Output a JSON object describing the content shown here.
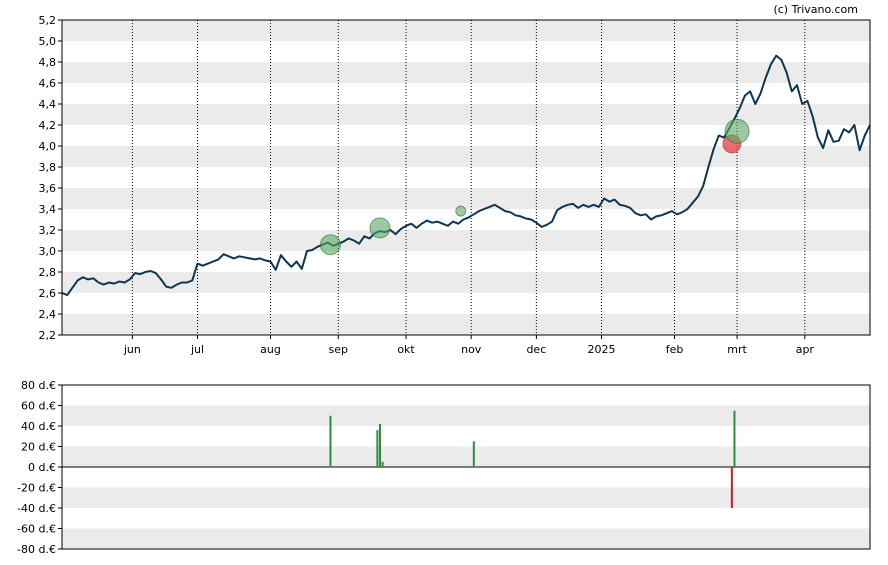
{
  "copyright": "(c) Trivano.com",
  "colors": {
    "price_line": "#0d3651",
    "band": "#ebebeb",
    "buy": "#2e8b3a",
    "sell": "#d2142b",
    "buy_marker": "#5aa864",
    "sell_marker": "#e84a4a"
  },
  "chart_data": [
    {
      "type": "line",
      "name": "price",
      "xlabel": "",
      "ylabel": "",
      "x_ticks": [
        "jun",
        "jul",
        "aug",
        "sep",
        "okt",
        "nov",
        "dec",
        "2025",
        "feb",
        "mrt",
        "apr"
      ],
      "y_ticks": [
        "2,2",
        "2,4",
        "2,6",
        "2,8",
        "3,0",
        "3,2",
        "3,4",
        "3,6",
        "3,8",
        "4,0",
        "4,2",
        "4,4",
        "4,6",
        "4,8",
        "5,0",
        "5,2"
      ],
      "ylim": [
        2.2,
        5.2
      ],
      "grid": true,
      "x_range": [
        0,
        310
      ],
      "x_tick_positions": [
        27,
        52,
        80,
        106,
        132,
        157,
        182,
        207,
        235,
        259,
        285
      ],
      "series_values": [
        [
          0,
          2.6
        ],
        [
          2,
          2.58
        ],
        [
          4,
          2.65
        ],
        [
          6,
          2.72
        ],
        [
          8,
          2.75
        ],
        [
          10,
          2.73
        ],
        [
          12,
          2.74
        ],
        [
          14,
          2.7
        ],
        [
          16,
          2.68
        ],
        [
          18,
          2.7
        ],
        [
          20,
          2.69
        ],
        [
          22,
          2.71
        ],
        [
          24,
          2.7
        ],
        [
          26,
          2.73
        ],
        [
          28,
          2.79
        ],
        [
          30,
          2.78
        ],
        [
          32,
          2.8
        ],
        [
          34,
          2.81
        ],
        [
          36,
          2.79
        ],
        [
          38,
          2.73
        ],
        [
          40,
          2.66
        ],
        [
          42,
          2.65
        ],
        [
          44,
          2.68
        ],
        [
          46,
          2.7
        ],
        [
          48,
          2.7
        ],
        [
          50,
          2.72
        ],
        [
          52,
          2.88
        ],
        [
          54,
          2.86
        ],
        [
          56,
          2.88
        ],
        [
          58,
          2.9
        ],
        [
          60,
          2.92
        ],
        [
          62,
          2.97
        ],
        [
          64,
          2.95
        ],
        [
          66,
          2.93
        ],
        [
          68,
          2.95
        ],
        [
          70,
          2.94
        ],
        [
          72,
          2.93
        ],
        [
          74,
          2.92
        ],
        [
          76,
          2.93
        ],
        [
          78,
          2.91
        ],
        [
          80,
          2.9
        ],
        [
          82,
          2.82
        ],
        [
          84,
          2.96
        ],
        [
          86,
          2.9
        ],
        [
          88,
          2.85
        ],
        [
          90,
          2.9
        ],
        [
          92,
          2.83
        ],
        [
          94,
          3.0
        ],
        [
          96,
          3.01
        ],
        [
          98,
          3.04
        ],
        [
          100,
          3.06
        ],
        [
          102,
          3.08
        ],
        [
          104,
          3.05
        ],
        [
          106,
          3.07
        ],
        [
          108,
          3.09
        ],
        [
          110,
          3.12
        ],
        [
          112,
          3.1
        ],
        [
          114,
          3.07
        ],
        [
          116,
          3.14
        ],
        [
          118,
          3.12
        ],
        [
          120,
          3.17
        ],
        [
          122,
          3.19
        ],
        [
          124,
          3.18
        ],
        [
          126,
          3.2
        ],
        [
          128,
          3.16
        ],
        [
          130,
          3.21
        ],
        [
          132,
          3.24
        ],
        [
          134,
          3.26
        ],
        [
          136,
          3.22
        ],
        [
          138,
          3.26
        ],
        [
          140,
          3.29
        ],
        [
          142,
          3.27
        ],
        [
          144,
          3.28
        ],
        [
          146,
          3.26
        ],
        [
          148,
          3.24
        ],
        [
          150,
          3.28
        ],
        [
          152,
          3.26
        ],
        [
          154,
          3.3
        ],
        [
          156,
          3.32
        ],
        [
          158,
          3.35
        ],
        [
          160,
          3.38
        ],
        [
          162,
          3.4
        ],
        [
          164,
          3.42
        ],
        [
          166,
          3.44
        ],
        [
          168,
          3.41
        ],
        [
          170,
          3.38
        ],
        [
          172,
          3.37
        ],
        [
          174,
          3.34
        ],
        [
          176,
          3.33
        ],
        [
          178,
          3.31
        ],
        [
          180,
          3.3
        ],
        [
          182,
          3.27
        ],
        [
          184,
          3.23
        ],
        [
          186,
          3.25
        ],
        [
          188,
          3.28
        ],
        [
          190,
          3.39
        ],
        [
          192,
          3.42
        ],
        [
          194,
          3.44
        ],
        [
          196,
          3.45
        ],
        [
          198,
          3.41
        ],
        [
          200,
          3.44
        ],
        [
          202,
          3.42
        ],
        [
          204,
          3.44
        ],
        [
          206,
          3.42
        ],
        [
          208,
          3.5
        ],
        [
          210,
          3.47
        ],
        [
          212,
          3.49
        ],
        [
          214,
          3.44
        ],
        [
          216,
          3.43
        ],
        [
          218,
          3.41
        ],
        [
          220,
          3.36
        ],
        [
          222,
          3.34
        ],
        [
          224,
          3.35
        ],
        [
          226,
          3.3
        ],
        [
          228,
          3.33
        ],
        [
          230,
          3.34
        ],
        [
          232,
          3.36
        ],
        [
          234,
          3.38
        ],
        [
          236,
          3.35
        ],
        [
          238,
          3.37
        ],
        [
          240,
          3.4
        ],
        [
          242,
          3.46
        ],
        [
          244,
          3.52
        ],
        [
          246,
          3.62
        ],
        [
          248,
          3.8
        ],
        [
          250,
          3.97
        ],
        [
          252,
          4.1
        ],
        [
          254,
          4.08
        ],
        [
          256,
          4.17
        ],
        [
          258,
          4.26
        ],
        [
          260,
          4.36
        ],
        [
          262,
          4.48
        ],
        [
          264,
          4.52
        ],
        [
          266,
          4.4
        ],
        [
          268,
          4.5
        ],
        [
          270,
          4.65
        ],
        [
          272,
          4.78
        ],
        [
          274,
          4.86
        ],
        [
          276,
          4.82
        ],
        [
          278,
          4.7
        ],
        [
          280,
          4.52
        ],
        [
          282,
          4.58
        ],
        [
          284,
          4.4
        ],
        [
          286,
          4.43
        ],
        [
          288,
          4.28
        ],
        [
          290,
          4.08
        ],
        [
          292,
          3.98
        ],
        [
          294,
          4.15
        ],
        [
          296,
          4.04
        ],
        [
          298,
          4.05
        ],
        [
          300,
          4.16
        ],
        [
          302,
          4.13
        ],
        [
          304,
          4.2
        ],
        [
          306,
          3.96
        ],
        [
          308,
          4.1
        ],
        [
          310,
          4.2
        ]
      ],
      "buy_markers": [
        [
          103,
          3.06
        ],
        [
          122,
          3.22
        ],
        [
          153,
          3.38
        ],
        [
          259,
          4.14
        ]
      ],
      "sell_markers": [
        [
          257,
          4.02
        ]
      ]
    },
    {
      "type": "bar",
      "name": "transactions",
      "xlabel": "",
      "ylabel": "",
      "y_ticks": [
        "80 d.€",
        "60 d.€",
        "40 d.€",
        "20 d.€",
        "0 d.€",
        "-20 d.€",
        "-40 d.€",
        "-60 d.€",
        "-80 d.€"
      ],
      "ylim": [
        -80,
        80
      ],
      "grid": true,
      "bars": [
        {
          "x": 103,
          "value": 50
        },
        {
          "x": 121,
          "value": 36
        },
        {
          "x": 122,
          "value": 42
        },
        {
          "x": 123,
          "value": 5
        },
        {
          "x": 158,
          "value": 25
        },
        {
          "x": 257,
          "value": -40
        },
        {
          "x": 258,
          "value": 55
        }
      ]
    }
  ]
}
